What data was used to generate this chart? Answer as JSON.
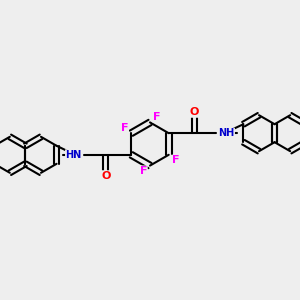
{
  "background_color": "#eeeeee",
  "bond_color": "#000000",
  "bond_width": 1.5,
  "atom_colors": {
    "C": "#000000",
    "H": "#000000",
    "F": "#ff00ff",
    "O": "#ff0000",
    "N": "#0000cc"
  },
  "font_size": 7,
  "bold_heteroatoms": true
}
